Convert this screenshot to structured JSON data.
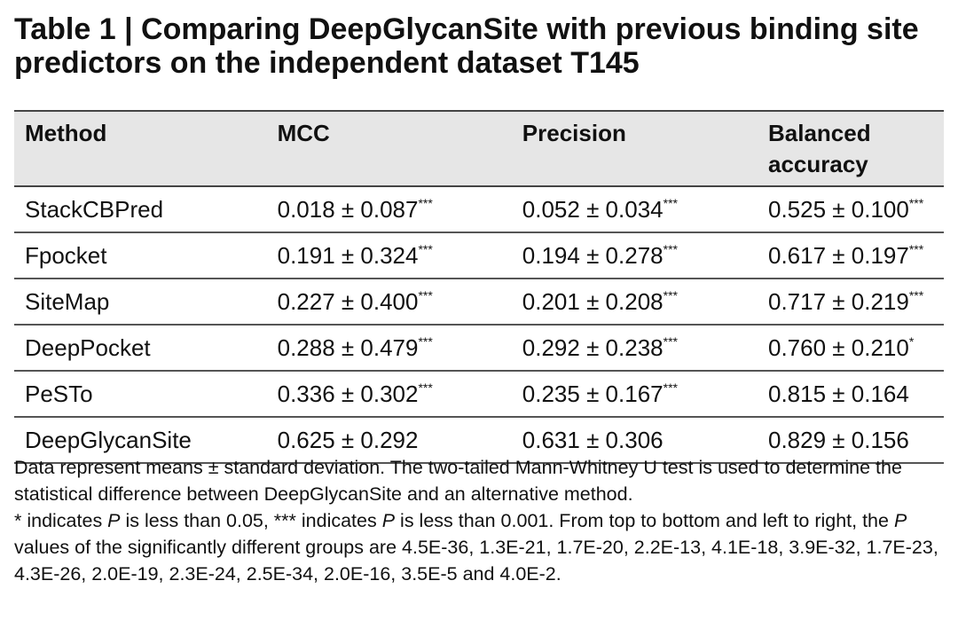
{
  "header": {
    "title": "Table 1 | Comparing DeepGlycanSite with previous binding site predictors on the independent dataset T145"
  },
  "table": {
    "columns": [
      "Method",
      "MCC",
      "Precision",
      "Balanced accuracy"
    ],
    "rows": [
      [
        {
          "text": "StackCBPred"
        },
        {
          "text": "0.018 ± 0.087",
          "sig": "***"
        },
        {
          "text": "0.052 ± 0.034",
          "sig": "***"
        },
        {
          "text": "0.525 ± 0.100",
          "sig": "***"
        }
      ],
      [
        {
          "text": "Fpocket"
        },
        {
          "text": "0.191 ± 0.324",
          "sig": "***"
        },
        {
          "text": "0.194 ± 0.278",
          "sig": "***"
        },
        {
          "text": "0.617 ± 0.197",
          "sig": "***"
        }
      ],
      [
        {
          "text": "SiteMap"
        },
        {
          "text": "0.227 ± 0.400",
          "sig": "***"
        },
        {
          "text": "0.201 ± 0.208",
          "sig": "***"
        },
        {
          "text": "0.717 ± 0.219",
          "sig": "***"
        }
      ],
      [
        {
          "text": "DeepPocket"
        },
        {
          "text": "0.288 ± 0.479",
          "sig": "***"
        },
        {
          "text": "0.292 ± 0.238",
          "sig": "***"
        },
        {
          "text": "0.760 ± 0.210",
          "sig": "*"
        }
      ],
      [
        {
          "text": "PeSTo"
        },
        {
          "text": "0.336 ± 0.302",
          "sig": "***"
        },
        {
          "text": "0.235 ± 0.167",
          "sig": "***"
        },
        {
          "text": "0.815 ± 0.164"
        }
      ],
      [
        {
          "text": "DeepGlycanSite"
        },
        {
          "text": "0.625 ± 0.292"
        },
        {
          "text": "0.631 ± 0.306"
        },
        {
          "text": "0.829 ± 0.156"
        }
      ]
    ]
  },
  "footnote": [
    {
      "text": "Data represent means ± standard deviation. The two-tailed Mann-Whitney U test is used to determine the statistical difference between DeepGlycanSite and an alternative method. "
    },
    {
      "text": "* indicates "
    },
    {
      "text": "P",
      "italic": true
    },
    {
      "text": " is less than 0.05, *** indicates "
    },
    {
      "text": "P",
      "italic": true
    },
    {
      "text": " is less than 0.001. From top to bottom and left to right, the "
    },
    {
      "text": "P",
      "italic": true
    },
    {
      "text": " values of the significantly different groups are 4.5E-36, 1.3E-21, 1.7E-20, 2.2E-13, 4.1E-18, 3.9E-32, 1.7E-23, 4.3E-26, 2.0E-19, 2.3E-24, 2.5E-34, 2.0E-16, 3.5E-5 and 4.0E-2."
    }
  ]
}
